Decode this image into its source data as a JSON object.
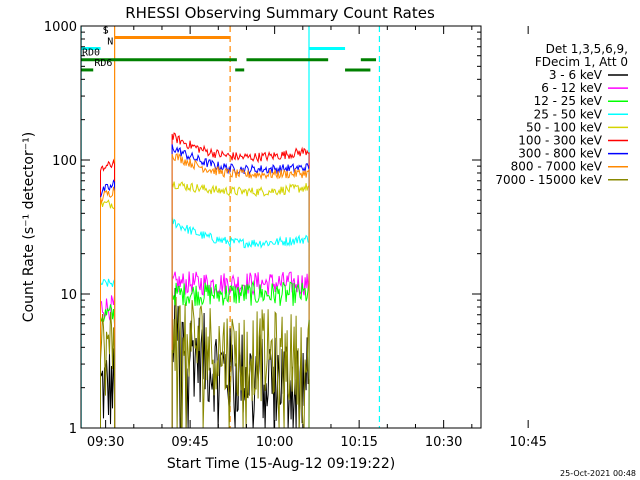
{
  "chart_data": {
    "type": "line",
    "title": "RHESSI Observing Summary Count Rates",
    "xlabel": "Start Time (15-Aug-12 09:19:22)",
    "ylabel": "Count Rate (s⁻¹ detector⁻¹)",
    "yscale": "log",
    "ylim": [
      1,
      1000
    ],
    "xlim_minutes": [
      -4.37,
      66.63
    ],
    "x_ticks": [
      {
        "label": "09:30",
        "t": 0
      },
      {
        "label": "09:45",
        "t": 15
      },
      {
        "label": "10:00",
        "t": 30
      },
      {
        "label": "10:15",
        "t": 45
      },
      {
        "label": "10:30",
        "t": 60
      },
      {
        "label": "10:45",
        "t": 75
      }
    ],
    "y_ticks": [
      {
        "label": "1",
        "v": 1
      },
      {
        "label": "10",
        "v": 10
      },
      {
        "label": "100",
        "v": 100
      },
      {
        "label": "1000",
        "v": 1000
      }
    ],
    "legend_header": [
      "Det 1,3,5,6,9,",
      "FDecim 1, Att 0"
    ],
    "series": [
      {
        "name": "3 - 6 keV",
        "color": "#000000",
        "seg1": {
          "t": [
            -0.9,
            1.6
          ],
          "start": 2,
          "end": 2
        },
        "seg2": {
          "t": [
            11.8,
            36.1
          ],
          "start": 5.5,
          "mid": 2.5,
          "end": 2.2
        }
      },
      {
        "name": "6 - 12 keV",
        "color": "#ff00ff",
        "seg1": {
          "t": [
            -0.9,
            1.6
          ],
          "start": 8,
          "end": 8
        },
        "seg2": {
          "t": [
            11.8,
            36.1
          ],
          "start": 12,
          "mid": 12,
          "end": 12
        }
      },
      {
        "name": "12 - 25 keV",
        "color": "#00ff00",
        "seg1": {
          "t": [
            -0.9,
            1.6
          ],
          "start": 7,
          "end": 7
        },
        "seg2": {
          "t": [
            11.8,
            36.1
          ],
          "start": 10,
          "mid": 10,
          "end": 10
        }
      },
      {
        "name": "25 - 50 keV",
        "color": "#00ffff",
        "seg1": {
          "t": [
            -0.9,
            1.6
          ],
          "start": 12,
          "end": 12
        },
        "seg2": {
          "t": [
            11.8,
            36.1
          ],
          "start": 35,
          "mid": 24,
          "end": 26
        }
      },
      {
        "name": "50 - 100 keV",
        "color": "#d4d400",
        "seg1": {
          "t": [
            -0.9,
            1.6
          ],
          "start": 47,
          "end": 47
        },
        "seg2": {
          "t": [
            11.8,
            36.1
          ],
          "start": 67,
          "mid": 58,
          "end": 63
        }
      },
      {
        "name": "100 - 300 keV",
        "color": "#ff0000",
        "seg1": {
          "t": [
            -0.9,
            1.6
          ],
          "start": 80,
          "end": 100
        },
        "seg2": {
          "t": [
            11.8,
            36.1
          ],
          "start": 150,
          "mid": 105,
          "end": 118
        }
      },
      {
        "name": "300 - 800 keV",
        "color": "#0000ff",
        "seg1": {
          "t": [
            -0.9,
            1.6
          ],
          "start": 55,
          "end": 68
        },
        "seg2": {
          "t": [
            11.8,
            36.1
          ],
          "start": 125,
          "mid": 85,
          "end": 88
        }
      },
      {
        "name": "800 - 7000 keV",
        "color": "#ff8800",
        "seg1": {
          "t": [
            -0.9,
            1.6
          ],
          "start": 50,
          "end": 62
        },
        "seg2": {
          "t": [
            11.8,
            36.1
          ],
          "start": 110,
          "mid": 78,
          "end": 80
        }
      },
      {
        "name": "7000 - 15000 keV",
        "color": "#888800",
        "seg1": {
          "t": [
            -0.9,
            1.6
          ],
          "start": 3.8,
          "end": 3.8
        },
        "seg2": {
          "t": [
            11.8,
            36.1
          ],
          "start": 6,
          "mid": 3.5,
          "end": 3.2
        }
      }
    ],
    "flags": [
      {
        "label": "S",
        "color": "#ff8800",
        "level": 820,
        "segments": [
          [
            1.6,
            22.1
          ]
        ],
        "label_t": -0.5
      },
      {
        "label": "N",
        "color": "#00ffff",
        "level": 680,
        "segments": [
          [
            -4.4,
            -0.9
          ],
          [
            36.1,
            42.5
          ]
        ],
        "label_t": 0.3
      },
      {
        "label": "RD0",
        "color": "#008000",
        "level": 560,
        "segments": [
          [
            -4.4,
            23.3
          ],
          [
            25.0,
            39.5
          ],
          [
            45.3,
            48.0
          ]
        ],
        "label_t": -4.2
      },
      {
        "label": "RD6",
        "color": "#008000",
        "level": 470,
        "segments": [
          [
            -4.4,
            -2.2
          ],
          [
            23.0,
            24.6
          ],
          [
            42.5,
            47.0
          ]
        ],
        "label_t": -2.0
      }
    ],
    "vlines": [
      {
        "t": -4.35,
        "color": "#00ffff",
        "style": "solid"
      },
      {
        "t": 1.6,
        "color": "#ff8800",
        "style": "solid"
      },
      {
        "t": 22.1,
        "color": "#ff8800",
        "style": "dashed"
      },
      {
        "t": 36.1,
        "color": "#00ffff",
        "style": "solid"
      },
      {
        "t": 48.6,
        "color": "#00ffff",
        "style": "dashed"
      }
    ],
    "timestamp": "25-Oct-2021 00:48"
  }
}
